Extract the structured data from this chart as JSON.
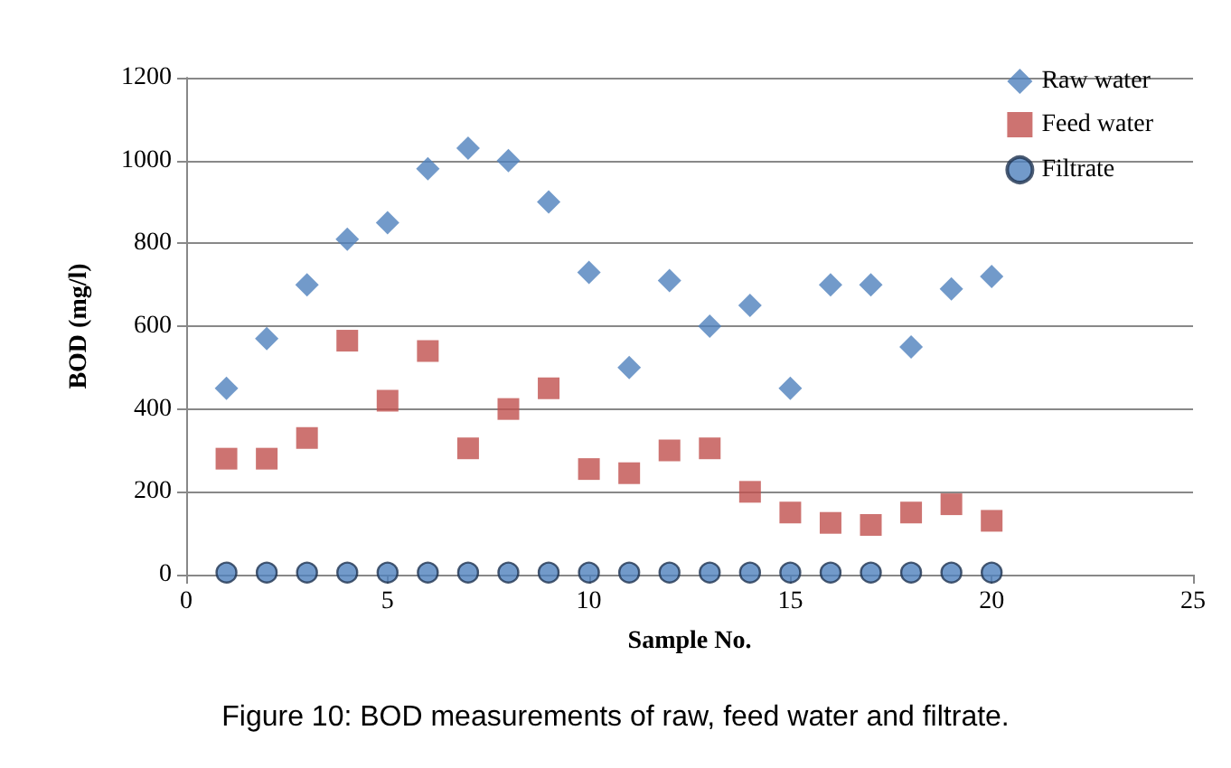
{
  "chart_data": {
    "type": "scatter",
    "xlabel": "Sample No.",
    "ylabel": "BOD (mg/l)",
    "x": [
      1,
      2,
      3,
      4,
      5,
      6,
      7,
      8,
      9,
      10,
      11,
      12,
      13,
      14,
      15,
      16,
      17,
      18,
      19,
      20
    ],
    "series": [
      {
        "name": "Raw water",
        "color": "#4f81bd",
        "marker": "diamond",
        "values": [
          450,
          570,
          700,
          810,
          850,
          980,
          1030,
          1000,
          900,
          730,
          500,
          710,
          600,
          650,
          450,
          700,
          700,
          550,
          690,
          720
        ]
      },
      {
        "name": "Feed water",
        "color": "#c0504d",
        "marker": "square",
        "values": [
          280,
          280,
          330,
          565,
          420,
          540,
          305,
          400,
          450,
          255,
          245,
          300,
          305,
          200,
          150,
          125,
          120,
          150,
          170,
          130
        ]
      },
      {
        "name": "Filtrate",
        "color": "#4f81bd",
        "marker": "circle",
        "values": [
          5,
          5,
          5,
          5,
          5,
          5,
          5,
          5,
          5,
          5,
          5,
          5,
          5,
          5,
          5,
          5,
          5,
          5,
          5,
          5
        ]
      }
    ],
    "xlim": [
      0,
      25
    ],
    "xticks": [
      0,
      5,
      10,
      15,
      20,
      25
    ],
    "ylim": [
      0,
      1200
    ],
    "yticks": [
      0,
      200,
      400,
      600,
      800,
      1000,
      1200
    ],
    "grid": "y",
    "legend": "top right",
    "annotations": [
      "Figure 10: BOD measurements of raw, feed water and filtrate."
    ]
  }
}
